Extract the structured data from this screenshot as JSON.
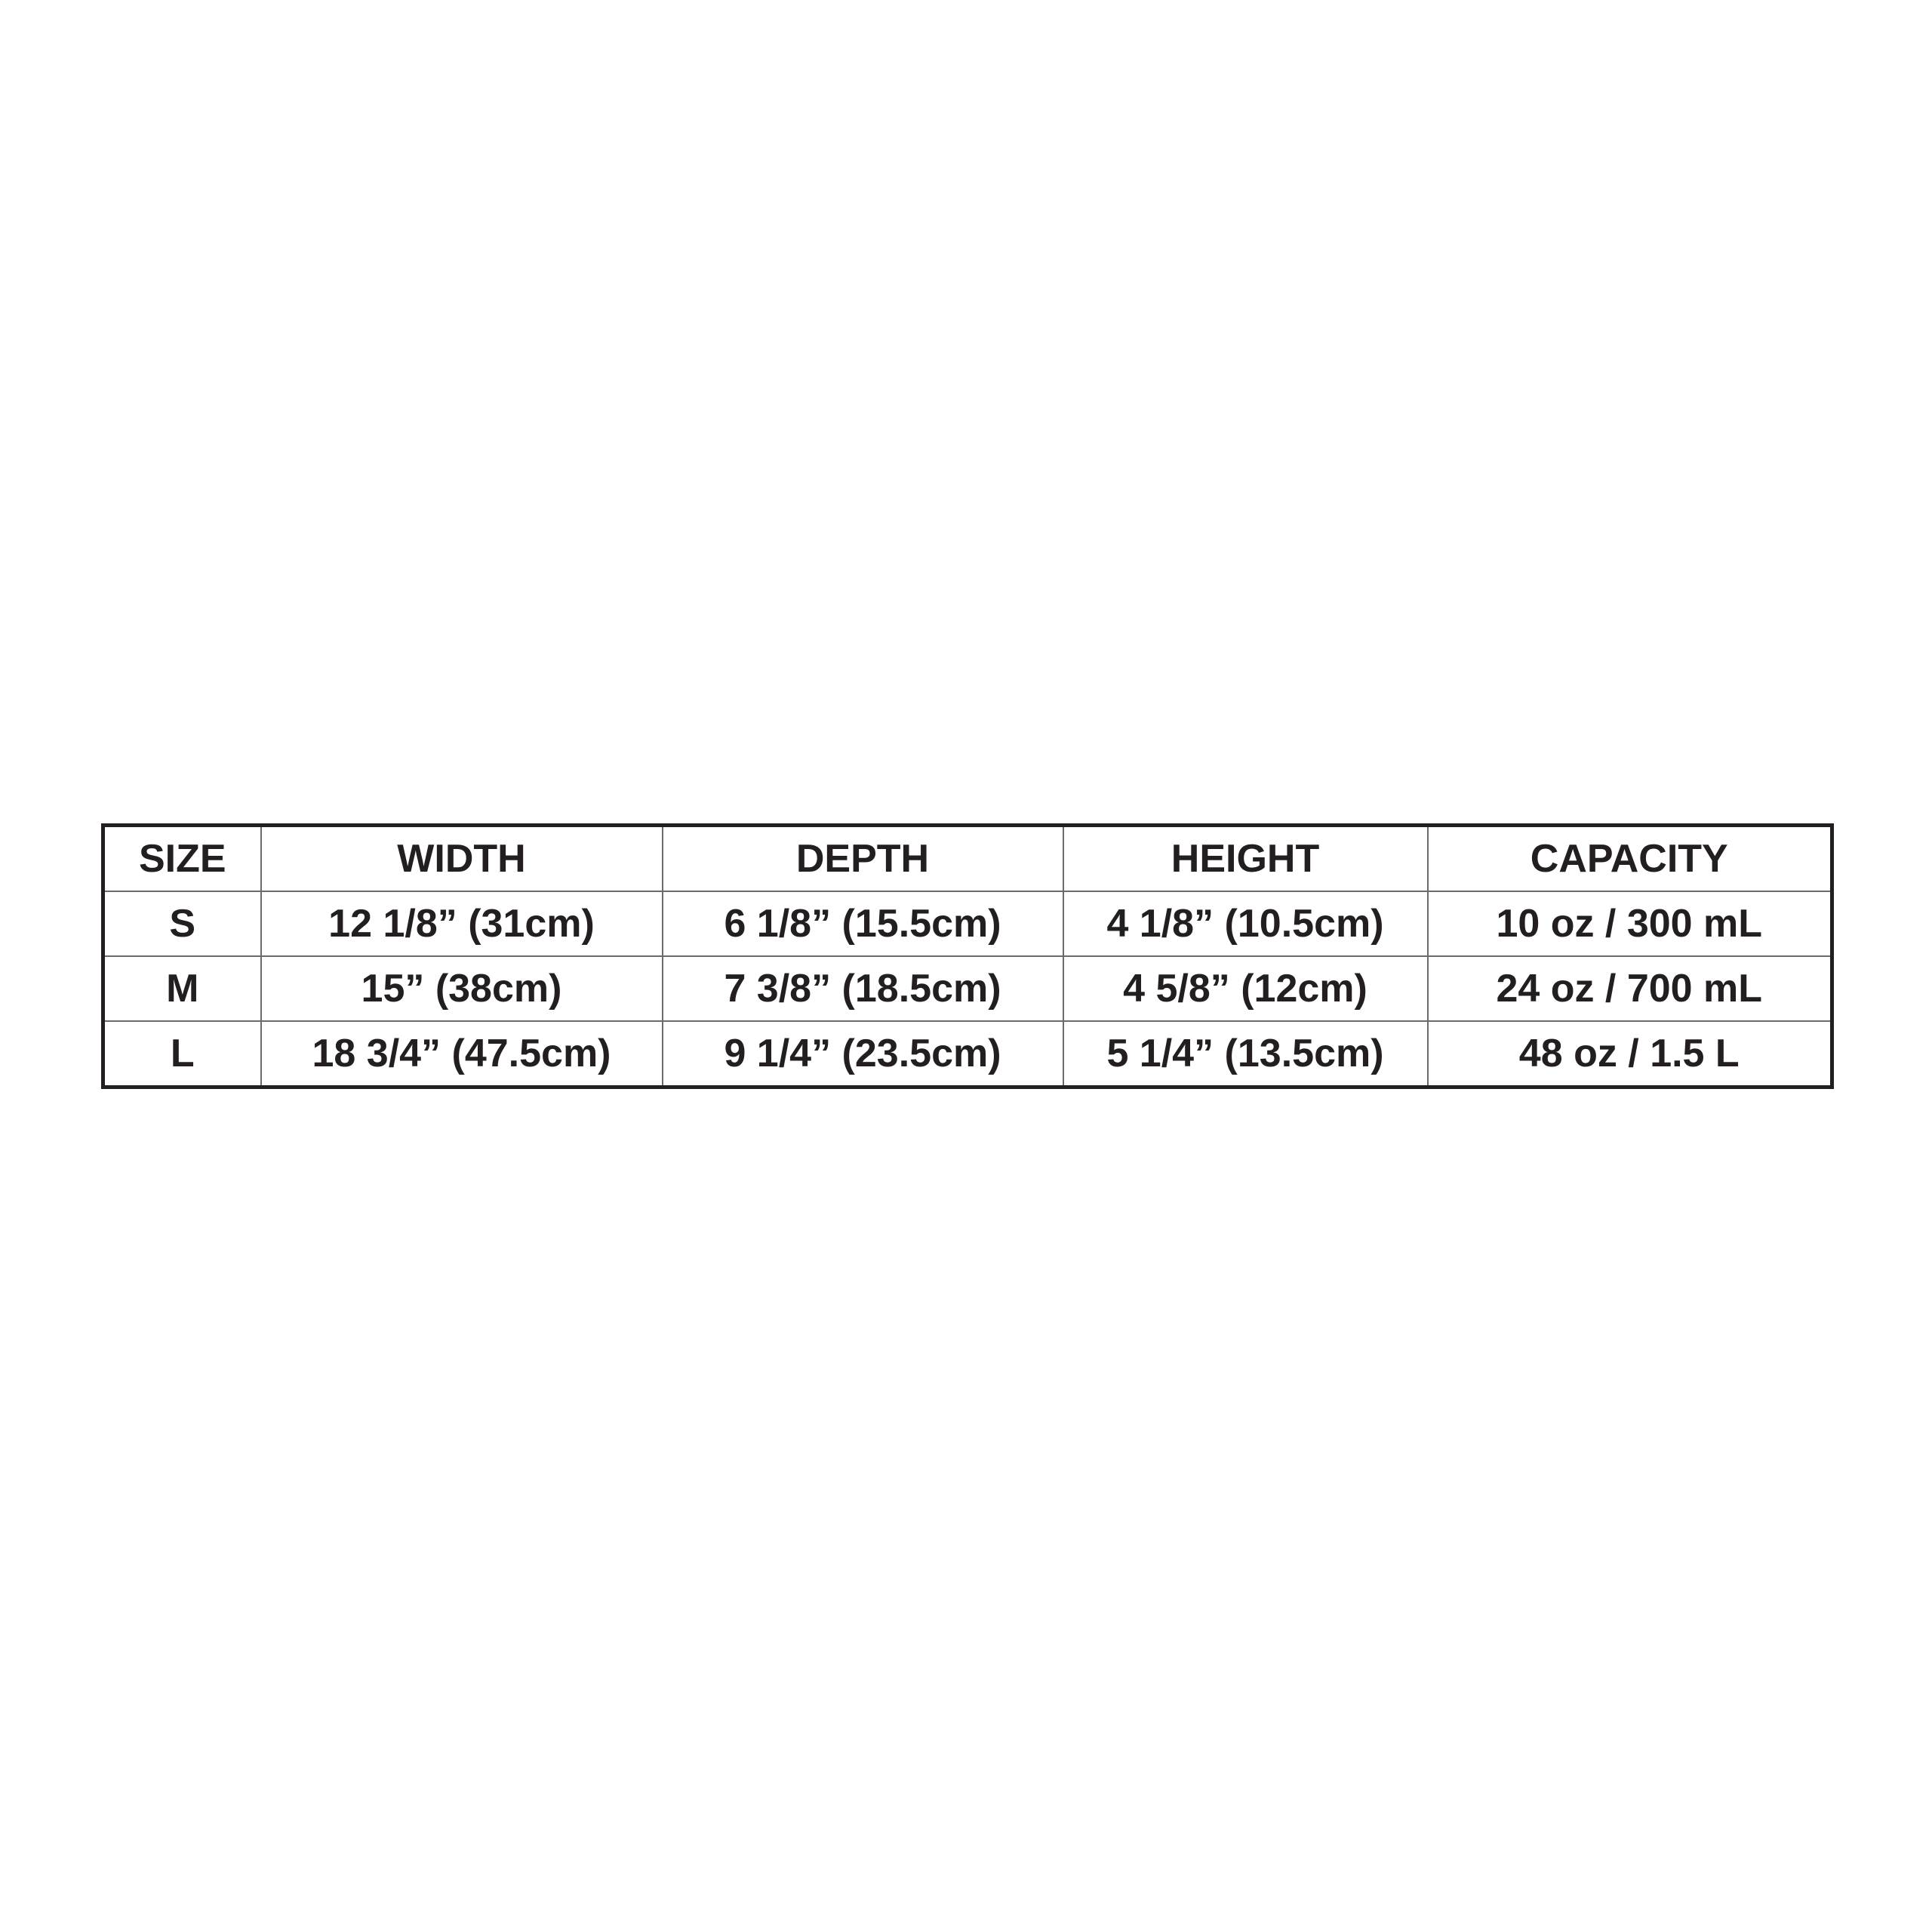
{
  "table": {
    "header": [
      "SIZE",
      "WIDTH",
      "DEPTH",
      "HEIGHT",
      "CAPACITY"
    ],
    "rows": [
      [
        "S",
        "12 1/8” (31cm)",
        "6 1/8” (15.5cm)",
        "4 1/8” (10.5cm)",
        "10 oz / 300 mL"
      ],
      [
        "M",
        "15” (38cm)",
        "7 3/8” (18.5cm)",
        "4 5/8” (12cm)",
        "24 oz / 700 mL"
      ],
      [
        "L",
        "18 3/4” (47.5cm)",
        "9 1/4” (23.5cm)",
        "5 1/4” (13.5cm)",
        "48 oz / 1.5 L"
      ]
    ]
  }
}
